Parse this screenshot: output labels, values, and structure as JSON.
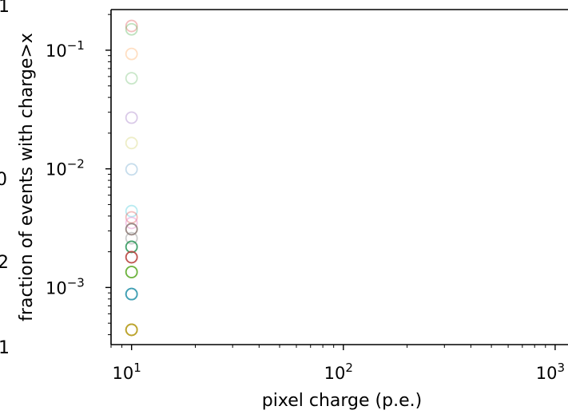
{
  "chart_data": {
    "type": "scatter",
    "xlabel": "pixel charge (p.e.)",
    "ylabel": "fraction of events with charge>x",
    "xscale": "log",
    "yscale": "log",
    "xlim": [
      8,
      1150
    ],
    "ylim": [
      0.00033,
      0.22
    ],
    "x_ticks": [
      {
        "base": "10",
        "exp": "1"
      },
      {
        "base": "10",
        "exp": "2"
      },
      {
        "base": "10",
        "exp": "3"
      }
    ],
    "y_ticks": [
      {
        "base": "10",
        "exp": "−1"
      },
      {
        "base": "10",
        "exp": "−2"
      },
      {
        "base": "10",
        "exp": "−3"
      }
    ],
    "grid": false,
    "marker": "hollow-circle",
    "series_colors": [
      "#1f77b4",
      "#ff7f0e",
      "#2ca02c",
      "#d62728",
      "#9467bd",
      "#8c564b",
      "#e377c2",
      "#7f7f7f",
      "#bcbd22",
      "#17becf"
    ],
    "points": [
      {
        "x": 10,
        "y": 0.16,
        "color": "#d62728",
        "alpha": 0.3
      },
      {
        "x": 10,
        "y": 0.15,
        "color": "#2ca02c",
        "alpha": 0.3
      },
      {
        "x": 10,
        "y": 0.093,
        "color": "#ff7f0e",
        "alpha": 0.25
      },
      {
        "x": 10,
        "y": 0.058,
        "color": "#2ca02c",
        "alpha": 0.25
      },
      {
        "x": 10,
        "y": 0.027,
        "color": "#9467bd",
        "alpha": 0.35
      },
      {
        "x": 10,
        "y": 0.0165,
        "color": "#bcbd22",
        "alpha": 0.25
      },
      {
        "x": 10,
        "y": 0.0099,
        "color": "#1f77b4",
        "alpha": 0.25
      },
      {
        "x": 10,
        "y": 0.0044,
        "color": "#17becf",
        "alpha": 0.3
      },
      {
        "x": 10,
        "y": 0.0039,
        "color": "#d62728",
        "alpha": 0.3
      },
      {
        "x": 10,
        "y": 0.0035,
        "color": "#e377c2",
        "alpha": 0.4
      },
      {
        "x": 10,
        "y": 0.0031,
        "color": "#8c564b",
        "alpha": 0.6
      },
      {
        "x": 10,
        "y": 0.0031,
        "color": "#7f7f7f",
        "alpha": 0.5
      },
      {
        "x": 10,
        "y": 0.0026,
        "color": "#7f7f7f",
        "alpha": 0.4
      },
      {
        "x": 10,
        "y": 0.0022,
        "color": "#1f77b4",
        "alpha": 0.6
      },
      {
        "x": 10,
        "y": 0.0022,
        "color": "#2ca02c",
        "alpha": 0.6
      },
      {
        "x": 10,
        "y": 0.0018,
        "color": "#8c564b",
        "alpha": 0.7
      },
      {
        "x": 10,
        "y": 0.0018,
        "color": "#d62728",
        "alpha": 0.5
      },
      {
        "x": 10,
        "y": 0.00135,
        "color": "#bcbd22",
        "alpha": 0.7
      },
      {
        "x": 10,
        "y": 0.00135,
        "color": "#2ca02c",
        "alpha": 0.6
      },
      {
        "x": 10,
        "y": 0.00088,
        "color": "#1f77b4",
        "alpha": 0.8
      },
      {
        "x": 10,
        "y": 0.00088,
        "color": "#7f7f7f",
        "alpha": 0.6
      },
      {
        "x": 10,
        "y": 0.00088,
        "color": "#17becf",
        "alpha": 0.5
      },
      {
        "x": 10,
        "y": 0.00044,
        "color": "#ff7f0e",
        "alpha": 0.7
      },
      {
        "x": 10,
        "y": 0.00044,
        "color": "#8c564b",
        "alpha": 0.6
      },
      {
        "x": 10,
        "y": 0.00044,
        "color": "#bcbd22",
        "alpha": 0.7
      }
    ],
    "clipped_left_text": [
      "1",
      "0",
      "2",
      "1"
    ]
  }
}
